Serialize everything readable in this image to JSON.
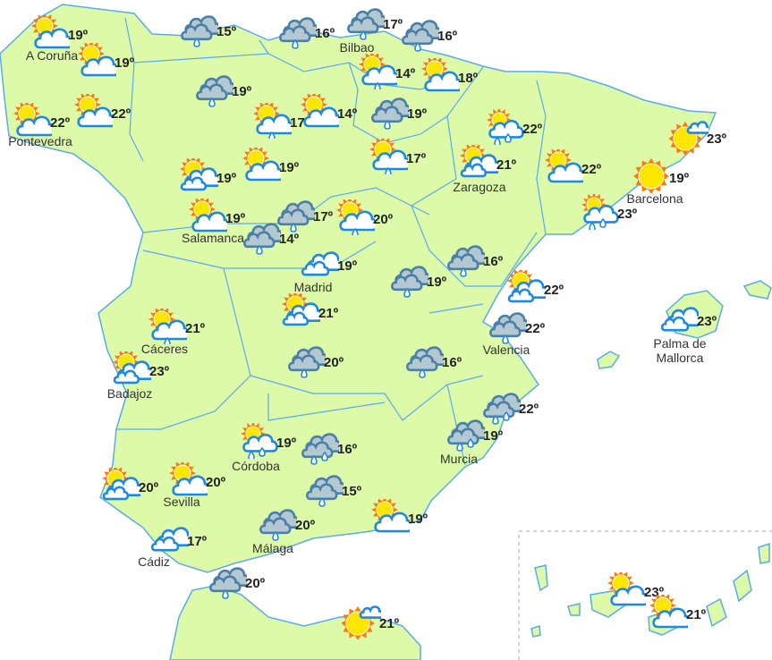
{
  "colors": {
    "land": "#dcfaa8",
    "border": "#5aaaf0",
    "cloud_outline": "#1e88e5",
    "rain_cloud": "#b4c8d2",
    "sun": "#ffe600",
    "sun_rays": "#ff7a00"
  },
  "markers": [
    {
      "icon": "partly-cloudy",
      "temp": "19º",
      "city": "A Coruña"
    },
    {
      "icon": "partly-cloudy",
      "temp": "19º",
      "city": ""
    },
    {
      "icon": "partly-cloudy",
      "temp": "22º",
      "city": "Pontevedra"
    },
    {
      "icon": "partly-cloudy",
      "temp": "22º",
      "city": ""
    },
    {
      "icon": "rain-cloud",
      "temp": "15º",
      "city": ""
    },
    {
      "icon": "rain-cloud",
      "temp": "16º",
      "city": ""
    },
    {
      "icon": "rain-cloud",
      "temp": "17º",
      "city": "Bilbao"
    },
    {
      "icon": "rain-cloud",
      "temp": "16º",
      "city": ""
    },
    {
      "icon": "partly-cloudy-rain",
      "temp": "14º",
      "city": ""
    },
    {
      "icon": "partly-cloudy",
      "temp": "18º",
      "city": ""
    },
    {
      "icon": "rain-cloud",
      "temp": "19º",
      "city": ""
    },
    {
      "icon": "partly-cloudy-rain",
      "temp": "17º",
      "city": ""
    },
    {
      "icon": "partly-cloudy",
      "temp": "14º",
      "city": ""
    },
    {
      "icon": "rain-cloud",
      "temp": "19º",
      "city": ""
    },
    {
      "icon": "partly-cloudy-rain",
      "temp": "17º",
      "city": ""
    },
    {
      "icon": "partly-cloudy-showers",
      "temp": "22º",
      "city": ""
    },
    {
      "icon": "partly-cloudy-two-clouds",
      "temp": "19º",
      "city": ""
    },
    {
      "icon": "partly-cloudy",
      "temp": "19º",
      "city": ""
    },
    {
      "icon": "partly-cloudy-two-clouds",
      "temp": "21º",
      "city": "Zaragoza"
    },
    {
      "icon": "partly-cloudy",
      "temp": "22º",
      "city": ""
    },
    {
      "icon": "sun-small-cloud",
      "temp": "23º",
      "city": ""
    },
    {
      "icon": "sunny",
      "temp": "19º",
      "city": "Barcelona"
    },
    {
      "icon": "partly-cloudy-showers",
      "temp": "23º",
      "city": ""
    },
    {
      "icon": "partly-cloudy",
      "temp": "19º",
      "city": "Salamanca"
    },
    {
      "icon": "rain-cloud",
      "temp": "17º",
      "city": ""
    },
    {
      "icon": "rain-cloud",
      "temp": "14º",
      "city": ""
    },
    {
      "icon": "partly-cloudy-rain",
      "temp": "20º",
      "city": ""
    },
    {
      "icon": "cloudy",
      "temp": "19º",
      "city": "Madrid"
    },
    {
      "icon": "rain-cloud",
      "temp": "19º",
      "city": ""
    },
    {
      "icon": "rain-cloud",
      "temp": "16º",
      "city": ""
    },
    {
      "icon": "partly-cloudy-two-clouds",
      "temp": "22º",
      "city": ""
    },
    {
      "icon": "rain-cloud",
      "temp": "22º",
      "city": "Valencia"
    },
    {
      "icon": "partly-cloudy-two-clouds",
      "temp": "21º",
      "city": ""
    },
    {
      "icon": "partly-cloudy-rain",
      "temp": "21º",
      "city": "Cáceres"
    },
    {
      "icon": "partly-cloudy-two-clouds",
      "temp": "23º",
      "city": "Badajoz"
    },
    {
      "icon": "rain-cloud",
      "temp": "20º",
      "city": ""
    },
    {
      "icon": "rain-cloud",
      "temp": "16º",
      "city": ""
    },
    {
      "icon": "rain-cloud-showers",
      "temp": "22º",
      "city": ""
    },
    {
      "icon": "rain-cloud-showers",
      "temp": "19º",
      "city": "Murcia"
    },
    {
      "icon": "partly-cloudy-showers",
      "temp": "19º",
      "city": "Córdoba"
    },
    {
      "icon": "rain-cloud-showers",
      "temp": "16º",
      "city": ""
    },
    {
      "icon": "partly-cloudy",
      "temp": "20º",
      "city": "Sevilla"
    },
    {
      "icon": "partly-cloudy-two-clouds",
      "temp": "20º",
      "city": ""
    },
    {
      "icon": "rain-cloud",
      "temp": "15º",
      "city": ""
    },
    {
      "icon": "cloudy",
      "temp": "17º",
      "city": "Cádiz"
    },
    {
      "icon": "rain-cloud",
      "temp": "20º",
      "city": "Málaga"
    },
    {
      "icon": "partly-cloudy",
      "temp": "19º",
      "city": ""
    },
    {
      "icon": "rain-cloud",
      "temp": "20º",
      "city": ""
    },
    {
      "icon": "sun-small-cloud",
      "temp": "21º",
      "city": ""
    },
    {
      "icon": "cloudy",
      "temp": "23º",
      "city": "Palma de Mallorca"
    },
    {
      "icon": "partly-cloudy",
      "temp": "23º",
      "city": ""
    },
    {
      "icon": "partly-cloudy",
      "temp": "21º",
      "city": ""
    }
  ]
}
